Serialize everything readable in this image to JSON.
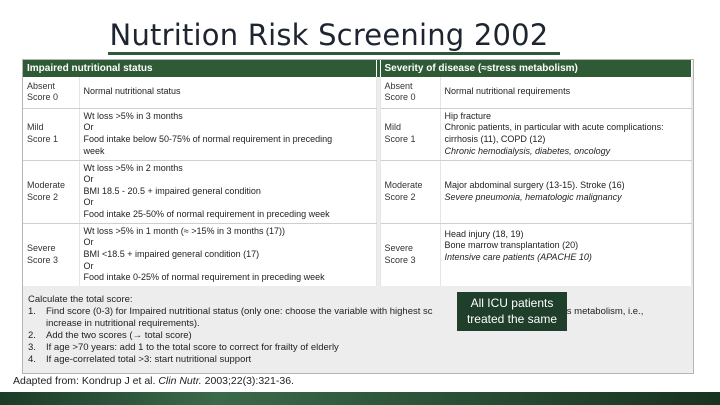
{
  "title": "Nutrition Risk Screening 2002",
  "table": {
    "header_left": "Impaired nutritional status",
    "header_right": "Severity of disease (≈stress metabolism)",
    "rows": [
      {
        "left_score": [
          "Absent",
          "Score 0"
        ],
        "left_desc": [
          "Normal nutritional status"
        ],
        "right_score": [
          "Absent",
          "Score 0"
        ],
        "right_desc": [
          "Normal nutritional requirements"
        ]
      },
      {
        "left_score": [
          "Mild",
          "Score 1"
        ],
        "left_desc": [
          "Wt loss >5% in 3 months",
          "Or",
          "Food intake below 50-75% of normal requirement in preceding",
          "week"
        ],
        "right_score": [
          "Mild",
          "Score 1"
        ],
        "right_desc": [
          "Hip fracture",
          "Chronic patients, in particular with acute complications:",
          "cirrhosis (11), COPD (12)",
          "Chronic hemodialysis, diabetes, oncology"
        ]
      },
      {
        "left_score": [
          "Moderate",
          "Score 2"
        ],
        "left_desc": [
          "Wt loss >5% in 2 months",
          "Or",
          "BMI 18.5 - 20.5 + impaired general condition",
          "Or",
          "Food intake 25-50% of normal requirement in preceding week"
        ],
        "right_score": [
          "Moderate",
          "Score 2"
        ],
        "right_desc": [
          "Major abdominal surgery (13-15). Stroke (16)",
          "Severe pneumonia, hematologic malignancy"
        ]
      },
      {
        "left_score": [
          "Severe",
          "Score 3"
        ],
        "left_desc": [
          "Wt loss >5% in 1 month (≈ >15% in 3 months (17))",
          "Or",
          "BMI <18.5 + impaired general condition (17)",
          "Or",
          "Food intake 0-25% of normal requirement in preceding week"
        ],
        "right_score": [
          "Severe",
          "Score 3"
        ],
        "right_desc": [
          "Head injury (18, 19)",
          "Bone marrow transplantation (20)",
          "Intensive care patients (APACHE 10)"
        ]
      }
    ]
  },
  "calculation": {
    "heading": "Calculate the total score:",
    "steps": [
      {
        "num": "1.",
        "text": "Find score (0-3) for Impaired nutritional status (only one: choose the variable with highest sc",
        "tail": "(≈stress metabolism, i.e.,",
        "cont": "increase in nutritional requirements)."
      },
      {
        "num": "2.",
        "text": "Add the two scores (→ total score)"
      },
      {
        "num": "3.",
        "text": "If age >70 years: add 1 to the total score to correct for frailty of elderly"
      },
      {
        "num": "4.",
        "text": "If age-correlated total >3: start nutritional support"
      }
    ]
  },
  "callout": [
    "All ICU patients",
    "treated the same"
  ],
  "reference": {
    "prefix": "Adapted from: Kondrup J et al. ",
    "journal": "Clin Nutr.",
    "suffix": " 2003;22(3):321-36."
  }
}
